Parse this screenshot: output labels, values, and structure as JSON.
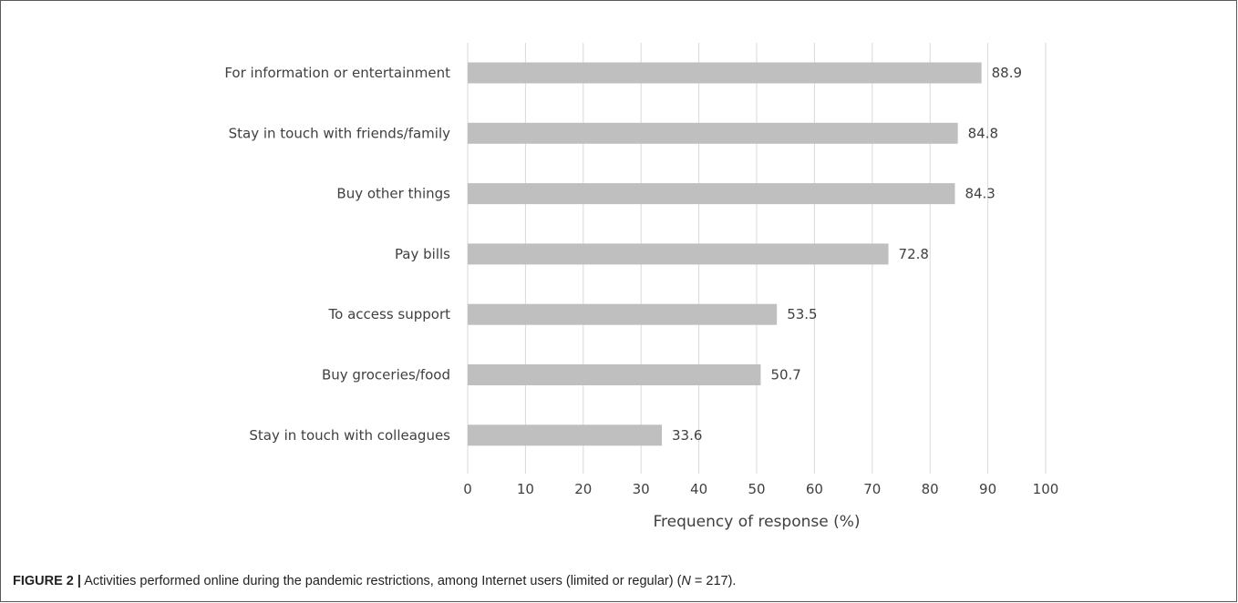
{
  "chart_data": {
    "type": "bar",
    "orientation": "horizontal",
    "categories": [
      "For information or entertainment",
      "Stay in touch with friends/family",
      "Buy other things",
      "Pay bills",
      "To access support",
      "Buy groceries/food",
      "Stay in touch with colleagues"
    ],
    "values": [
      88.9,
      84.8,
      84.3,
      72.8,
      53.5,
      50.7,
      33.6
    ],
    "value_labels": [
      "88.9",
      "84.8",
      "84.3",
      "72.8",
      "53.5",
      "50.7",
      "33.6"
    ],
    "xlabel": "Frequency of response (%)",
    "ylabel": "",
    "xlim": [
      0,
      100
    ],
    "xticks": [
      0,
      10,
      20,
      30,
      40,
      50,
      60,
      70,
      80,
      90,
      100
    ],
    "grid": "vertical",
    "bar_color": "#bfbfbf",
    "grid_color": "#d9d9d9"
  },
  "caption": {
    "label": "FIGURE 2 |",
    "text_before_n": " Activities performed online during the pandemic restrictions, among Internet users (limited or regular) (",
    "n_symbol": "N",
    "text_after_n": " = 217)."
  }
}
